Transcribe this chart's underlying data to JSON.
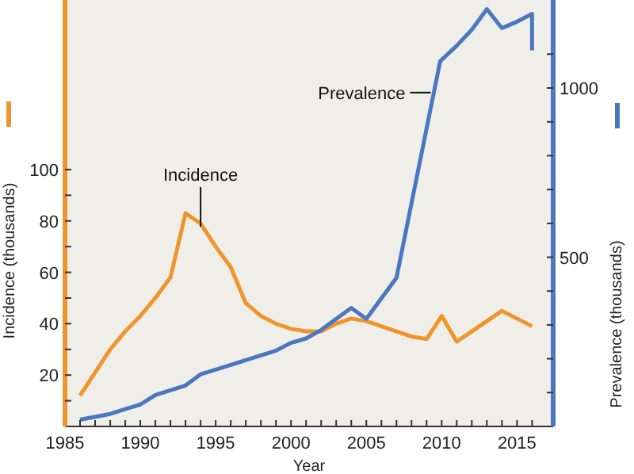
{
  "chart_data": {
    "type": "line",
    "xlabel": "Year",
    "ylabel": "Incidence (thousands)",
    "y2label": "Prevalence (thousands)",
    "xlim": [
      1985,
      2017.4
    ],
    "xticks": [
      1985,
      {
        "value": 1986,
        "label": null
      },
      {
        "value": 1987,
        "label": null
      },
      {
        "value": 1988,
        "label": null
      },
      {
        "value": 1989,
        "label": null
      },
      1990,
      {
        "value": 1991,
        "label": null
      },
      {
        "value": 1992,
        "label": null
      },
      {
        "value": 1993,
        "label": null
      },
      {
        "value": 1994,
        "label": null
      },
      1995,
      {
        "value": 1996,
        "label": null
      },
      {
        "value": 1997,
        "label": null
      },
      {
        "value": 1998,
        "label": null
      },
      {
        "value": 1999,
        "label": null
      },
      2000,
      {
        "value": 2001,
        "label": null
      },
      {
        "value": 2002,
        "label": null
      },
      {
        "value": 2003,
        "label": null
      },
      {
        "value": 2004,
        "label": null
      },
      2005,
      {
        "value": 2006,
        "label": null
      },
      {
        "value": 2007,
        "label": null
      },
      {
        "value": 2008,
        "label": null
      },
      {
        "value": 2009,
        "label": null
      },
      2010,
      {
        "value": 2011,
        "label": null
      },
      {
        "value": 2012,
        "label": null
      },
      {
        "value": 2013,
        "label": null
      },
      {
        "value": 2014,
        "label": null
      },
      2015,
      {
        "value": 2016,
        "label": null
      }
    ],
    "ylim": [
      0,
      166
    ],
    "yticks": [
      {
        "value": 10,
        "label": null
      },
      20,
      {
        "value": 30,
        "label": null
      },
      40,
      {
        "value": 50,
        "label": null
      },
      60,
      {
        "value": 70,
        "label": null
      },
      80,
      {
        "value": 90,
        "label": null
      },
      100
    ],
    "y2lim": [
      0,
      1260
    ],
    "y2ticks": [
      {
        "value": 100,
        "label": null
      },
      {
        "value": 200,
        "label": null
      },
      {
        "value": 300,
        "label": null
      },
      {
        "value": 400,
        "label": null
      },
      500,
      {
        "value": 600,
        "label": null
      },
      {
        "value": 700,
        "label": null
      },
      {
        "value": 800,
        "label": null
      },
      {
        "value": 900,
        "label": null
      },
      1000,
      {
        "value": 1100,
        "label": null
      }
    ],
    "grid": false,
    "line_style": "solid",
    "series": [
      {
        "name": "Incidence",
        "color": "#f0952e",
        "x": [
          1986,
          1987,
          1988,
          1989,
          1990,
          1991,
          1992,
          1993,
          1994,
          1995,
          1996,
          1997,
          1998,
          1999,
          2000,
          2001,
          2002,
          2003,
          2004,
          2005,
          2006,
          2007,
          2008,
          2009,
          2010,
          2011,
          2012,
          2013,
          2014,
          2015,
          2016
        ],
        "values": [
          12,
          21,
          30,
          37,
          43,
          50,
          58,
          83,
          79,
          70,
          62,
          48,
          43,
          40,
          38,
          37,
          37,
          40,
          42,
          41,
          39,
          37,
          35,
          34,
          43,
          33,
          37,
          41,
          45,
          42,
          39
        ]
      },
      {
        "name": "Prevalence",
        "color": "#4a77c0",
        "axis": "y2",
        "x": [
          1986,
          1988,
          1989,
          1990,
          1991,
          1992,
          1993,
          1994,
          1995,
          1996,
          1997,
          1998,
          1999,
          2000,
          2001,
          2002,
          2003,
          2004,
          2005,
          2007,
          2009.9,
          2011,
          2012,
          2013,
          2014,
          2015,
          2016,
          2016
        ],
        "values": [
          20,
          37,
          51,
          65,
          93,
          107,
          121,
          154,
          168,
          182,
          196,
          210,
          224,
          247,
          260,
          285,
          318,
          350,
          318,
          439,
          1079,
          1125,
          1172,
          1233,
          1177,
          1196,
          1219,
          1111
        ]
      }
    ]
  }
}
